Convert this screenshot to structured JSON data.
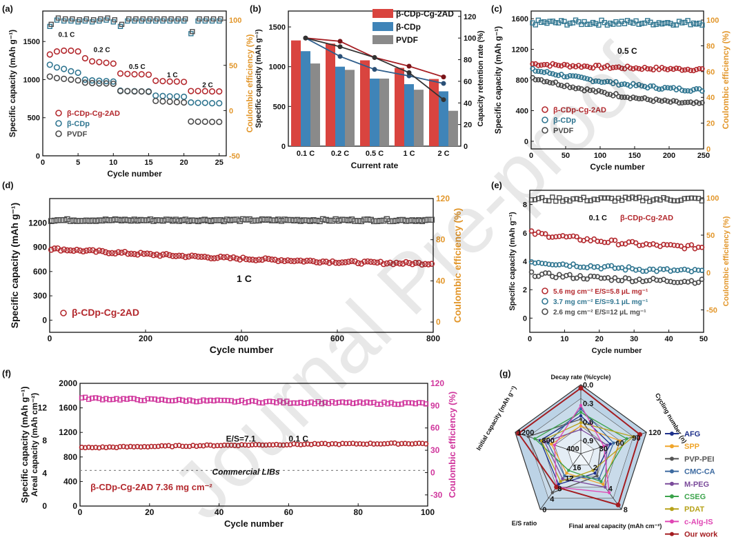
{
  "watermark": "Journal Pre-proof",
  "colors": {
    "red": "#b3282d",
    "blue": "#2f7590",
    "gray": "#4a4a4a",
    "orange": "#e2962a",
    "magenta": "#d0359c",
    "barRed": "#d9443f",
    "barBlue": "#3f84b8",
    "barGray": "#8a8a8a"
  },
  "chart_data": [
    {
      "panel": "(a)",
      "type": "scatter",
      "xlabel": "Cycle number",
      "ylabel": "Specific capacity (mAh g⁻¹)",
      "y2label": "Coulombic efficiency (%)",
      "xlim": [
        0,
        26
      ],
      "ylim": [
        0,
        1900
      ],
      "y2lim": [
        -50,
        110
      ],
      "xticks": [
        0,
        5,
        10,
        15,
        20,
        25
      ],
      "yticks": [
        0,
        500,
        1000,
        1500
      ],
      "y2ticks": [
        -50,
        0,
        50,
        100
      ],
      "rate_labels": [
        {
          "text": "0.1 C",
          "x": 2.2,
          "y": 1560
        },
        {
          "text": "0.2 C",
          "x": 7.2,
          "y": 1360
        },
        {
          "text": "0.5 C",
          "x": 12.2,
          "y": 1140
        },
        {
          "text": "1 C",
          "x": 17.6,
          "y": 1030
        },
        {
          "text": "2 C",
          "x": 22.6,
          "y": 900
        }
      ],
      "legend": [
        "β-CDp-Cg-2AD",
        "β-CDp",
        "PVDF"
      ],
      "series": [
        {
          "name": "β-CDp-Cg-2AD",
          "color": "red",
          "x": [
            1,
            2,
            3,
            4,
            5,
            6,
            7,
            8,
            9,
            10,
            11,
            12,
            13,
            14,
            15,
            16,
            17,
            18,
            19,
            20,
            21,
            22,
            23,
            24,
            25
          ],
          "values": [
            1330,
            1370,
            1380,
            1380,
            1370,
            1280,
            1240,
            1230,
            1220,
            1210,
            1080,
            1075,
            1070,
            1070,
            1065,
            985,
            980,
            975,
            975,
            970,
            850,
            850,
            848,
            845,
            845
          ]
        },
        {
          "name": "β-CDp",
          "color": "blue",
          "x": [
            1,
            2,
            3,
            4,
            5,
            6,
            7,
            8,
            9,
            10,
            11,
            12,
            13,
            14,
            15,
            16,
            17,
            18,
            19,
            20,
            21,
            22,
            23,
            24,
            25
          ],
          "values": [
            1195,
            1160,
            1140,
            1110,
            1090,
            1000,
            990,
            985,
            980,
            975,
            855,
            850,
            848,
            845,
            845,
            790,
            785,
            780,
            780,
            775,
            700,
            695,
            695,
            690,
            690
          ]
        },
        {
          "name": "PVDF",
          "color": "gray",
          "x": [
            1,
            2,
            3,
            4,
            5,
            6,
            7,
            8,
            9,
            10,
            11,
            12,
            13,
            14,
            15,
            16,
            17,
            18,
            19,
            20,
            21,
            22,
            23,
            24,
            25
          ],
          "values": [
            1040,
            1020,
            1010,
            1000,
            990,
            960,
            955,
            950,
            950,
            945,
            850,
            848,
            845,
            845,
            840,
            720,
            715,
            710,
            705,
            700,
            450,
            448,
            448,
            445,
            445
          ]
        },
        {
          "name": "CE",
          "axis": "y2",
          "color": "blue",
          "marker": "square",
          "x": [
            1,
            2,
            3,
            4,
            5,
            6,
            7,
            8,
            9,
            10,
            11,
            12,
            13,
            14,
            15,
            16,
            17,
            18,
            19,
            20,
            21,
            22,
            23,
            24,
            25
          ],
          "values": [
            93,
            100,
            99,
            99,
            98,
            99,
            98,
            99,
            100,
            98,
            93,
            99,
            99,
            99,
            99,
            99,
            99,
            99,
            99,
            99,
            85,
            99,
            99,
            99,
            99
          ]
        }
      ]
    },
    {
      "panel": "(b)",
      "type": "bar",
      "xlabel": "Current rate",
      "ylabel": "Specific capacity (mAh g⁻¹)",
      "y2label": "Capacity retention rate (%)",
      "categories": [
        "0.1 C",
        "0.2 C",
        "0.5 C",
        "1 C",
        "2 C"
      ],
      "ylim": [
        0,
        1700
      ],
      "y2lim": [
        0,
        125
      ],
      "yticks": [
        0,
        500,
        1000,
        1500
      ],
      "y2ticks": [
        0,
        20,
        40,
        60,
        80,
        100,
        120
      ],
      "series": [
        {
          "name": "β-CDp-Cg-2AD",
          "color": "barRed",
          "values": [
            1330,
            1290,
            1080,
            985,
            845
          ],
          "retention": [
            100,
            97,
            82,
            74,
            64
          ]
        },
        {
          "name": "β-CDp",
          "color": "barBlue",
          "values": [
            1195,
            1000,
            850,
            780,
            690
          ],
          "retention": [
            100,
            83,
            71,
            65,
            58
          ]
        },
        {
          "name": "PVDF",
          "color": "barGray",
          "values": [
            1040,
            960,
            850,
            710,
            445
          ],
          "retention": [
            100,
            92,
            82,
            68,
            43
          ]
        }
      ]
    },
    {
      "panel": "(c)",
      "type": "scatter",
      "xlabel": "Cycle number",
      "ylabel": "Specific capacity (mAh g⁻¹)",
      "y2label": "Coulombic efficiency (%)",
      "xlim": [
        0,
        250
      ],
      "ylim": [
        -100,
        1700
      ],
      "y2lim": [
        0,
        107
      ],
      "xticks": [
        0,
        50,
        100,
        150,
        200,
        250
      ],
      "yticks": [
        0,
        400,
        800,
        1200,
        1600
      ],
      "y2ticks": [
        0,
        20,
        40,
        60,
        80,
        100
      ],
      "annotation": "0.5 C",
      "legend": [
        "β-CDp-Cg-2AD",
        "β-CDp",
        "PVDF"
      ],
      "trends": [
        {
          "name": "β-CDp-Cg-2AD",
          "color": "red",
          "start": 1010,
          "end": 940
        },
        {
          "name": "β-CDp",
          "color": "blue",
          "start": 930,
          "end": 670
        },
        {
          "name": "PVDF",
          "color": "gray",
          "start": 830,
          "end": 490
        },
        {
          "name": "CE",
          "axis": "y2",
          "color": "blue",
          "start": 98,
          "end": 98
        }
      ]
    },
    {
      "panel": "(d)",
      "type": "scatter",
      "xlabel": "Cycle number",
      "ylabel": "Specific capacity (mAh g⁻¹)",
      "y2label": "Coulombic efficiency (%)",
      "xlim": [
        0,
        800
      ],
      "ylim": [
        -150,
        1500
      ],
      "y2lim": [
        -10,
        120
      ],
      "xticks": [
        0,
        200,
        400,
        600,
        800
      ],
      "yticks": [
        0,
        300,
        600,
        900,
        1200
      ],
      "y2ticks": [
        0,
        40,
        80,
        120
      ],
      "annotation": "1 C",
      "legend": [
        "β-CDp-Cg-2AD"
      ],
      "trends": [
        {
          "name": "β-CDp-Cg-2AD",
          "color": "red",
          "start": 880,
          "end": 700
        },
        {
          "name": "CE",
          "axis": "y2",
          "color": "gray",
          "start": 99,
          "end": 99
        }
      ]
    },
    {
      "panel": "(e)",
      "type": "scatter",
      "xlabel": "Cycle number",
      "ylabel": "Specific capacity (mAh g⁻¹)",
      "y2label": "Coulombic efficiency (%)",
      "xlim": [
        0,
        50
      ],
      "ylim": [
        -1,
        9
      ],
      "y2lim": [
        -80,
        110
      ],
      "xticks": [
        0,
        10,
        20,
        30,
        40,
        50
      ],
      "yticks": [
        0,
        2,
        4,
        6,
        8
      ],
      "y2ticks": [
        -50,
        0,
        50,
        100
      ],
      "annotations": [
        "0.1 C",
        "β-CDp-Cg-2AD"
      ],
      "legend": [
        "5.6 mg cm⁻² E/S=5.8 μL mg⁻¹",
        "3.7 mg cm⁻² E/S=9.1 μL mg⁻¹",
        "2.6 mg cm⁻² E/S=12 μL mg⁻¹"
      ],
      "trends": [
        {
          "name": "5.6 mg cm⁻²",
          "color": "red",
          "start": 6.0,
          "end": 5.0
        },
        {
          "name": "3.7 mg cm⁻²",
          "color": "blue",
          "start": 4.0,
          "end": 3.3
        },
        {
          "name": "2.6 mg cm⁻²",
          "color": "gray",
          "start": 3.1,
          "end": 2.6
        },
        {
          "name": "CE",
          "axis": "y2",
          "color": "gray",
          "start": 98,
          "end": 98
        }
      ]
    },
    {
      "panel": "(f)",
      "type": "scatter",
      "xlabel": "Cycle number",
      "ylabel": "Specific capacity (mAh g⁻¹)",
      "ylabel2": "Areal capacity (mAh cm⁻²)",
      "y2label": "Coulombic efficiency (%)",
      "xlim": [
        0,
        100
      ],
      "ylim": [
        0,
        2000
      ],
      "y2lim": [
        -45,
        120
      ],
      "xticks": [
        0,
        20,
        40,
        60,
        80,
        100
      ],
      "yticks": [
        0,
        400,
        800,
        1200,
        1600,
        2000
      ],
      "areal_ticks": [
        0,
        4,
        8,
        12
      ],
      "y2ticks": [
        -30,
        0,
        30,
        60,
        90,
        120
      ],
      "annotations": [
        "E/S=7.1",
        "0.1 C",
        "Commercial LIBs",
        "β-CDp-Cg-2AD  7.36 mg cm⁻²"
      ],
      "commercial_level": 580,
      "trends": [
        {
          "name": "Capacity",
          "color": "red",
          "start": 950,
          "end": 1020
        },
        {
          "name": "CE",
          "axis": "y2",
          "color": "magenta",
          "start": 100,
          "end": 93
        }
      ]
    },
    {
      "panel": "(g)",
      "type": "radar",
      "axes": [
        "Decay rate (%/cycle)",
        "Cycling number (n)",
        "Final areal capacity (mAh cm⁻²)",
        "E/S ratio",
        "Initial capacity (mAh g⁻¹)"
      ],
      "axis_ticks": [
        [
          "0.0",
          "0.3",
          "0.6",
          "0.9"
        ],
        [
          "30",
          "60",
          "90",
          "120"
        ],
        [
          "2",
          "4",
          "8"
        ],
        [
          "16",
          "12",
          "8",
          "4",
          "0"
        ],
        [
          "400",
          "800",
          "1200"
        ]
      ],
      "legend": [
        "AFG",
        "SPP",
        "PVP-PEI",
        "CMC-CA",
        "M-PEG",
        "CSEG",
        "PDAT",
        "c-Alg-IS",
        "Our work"
      ],
      "series_colors": [
        "#1c2f8a",
        "#f0a52a",
        "#555555",
        "#3c6aa0",
        "#7a4a9a",
        "#3aa34a",
        "#b7a21a",
        "#e046b4",
        "#a41c20"
      ],
      "values": [
        [
          0.55,
          0.45,
          0.35,
          0.55,
          0.62
        ],
        [
          0.4,
          0.6,
          0.55,
          0.35,
          0.45
        ],
        [
          0.5,
          0.3,
          0.4,
          0.7,
          0.8
        ],
        [
          0.65,
          0.5,
          0.45,
          0.4,
          0.5
        ],
        [
          0.35,
          0.4,
          0.6,
          0.45,
          0.55
        ],
        [
          0.6,
          0.7,
          0.5,
          0.3,
          0.7
        ],
        [
          0.45,
          0.8,
          0.3,
          0.5,
          0.6
        ],
        [
          0.7,
          0.35,
          0.7,
          0.6,
          0.4
        ],
        [
          0.95,
          0.9,
          0.92,
          0.6,
          0.95
        ]
      ]
    }
  ]
}
